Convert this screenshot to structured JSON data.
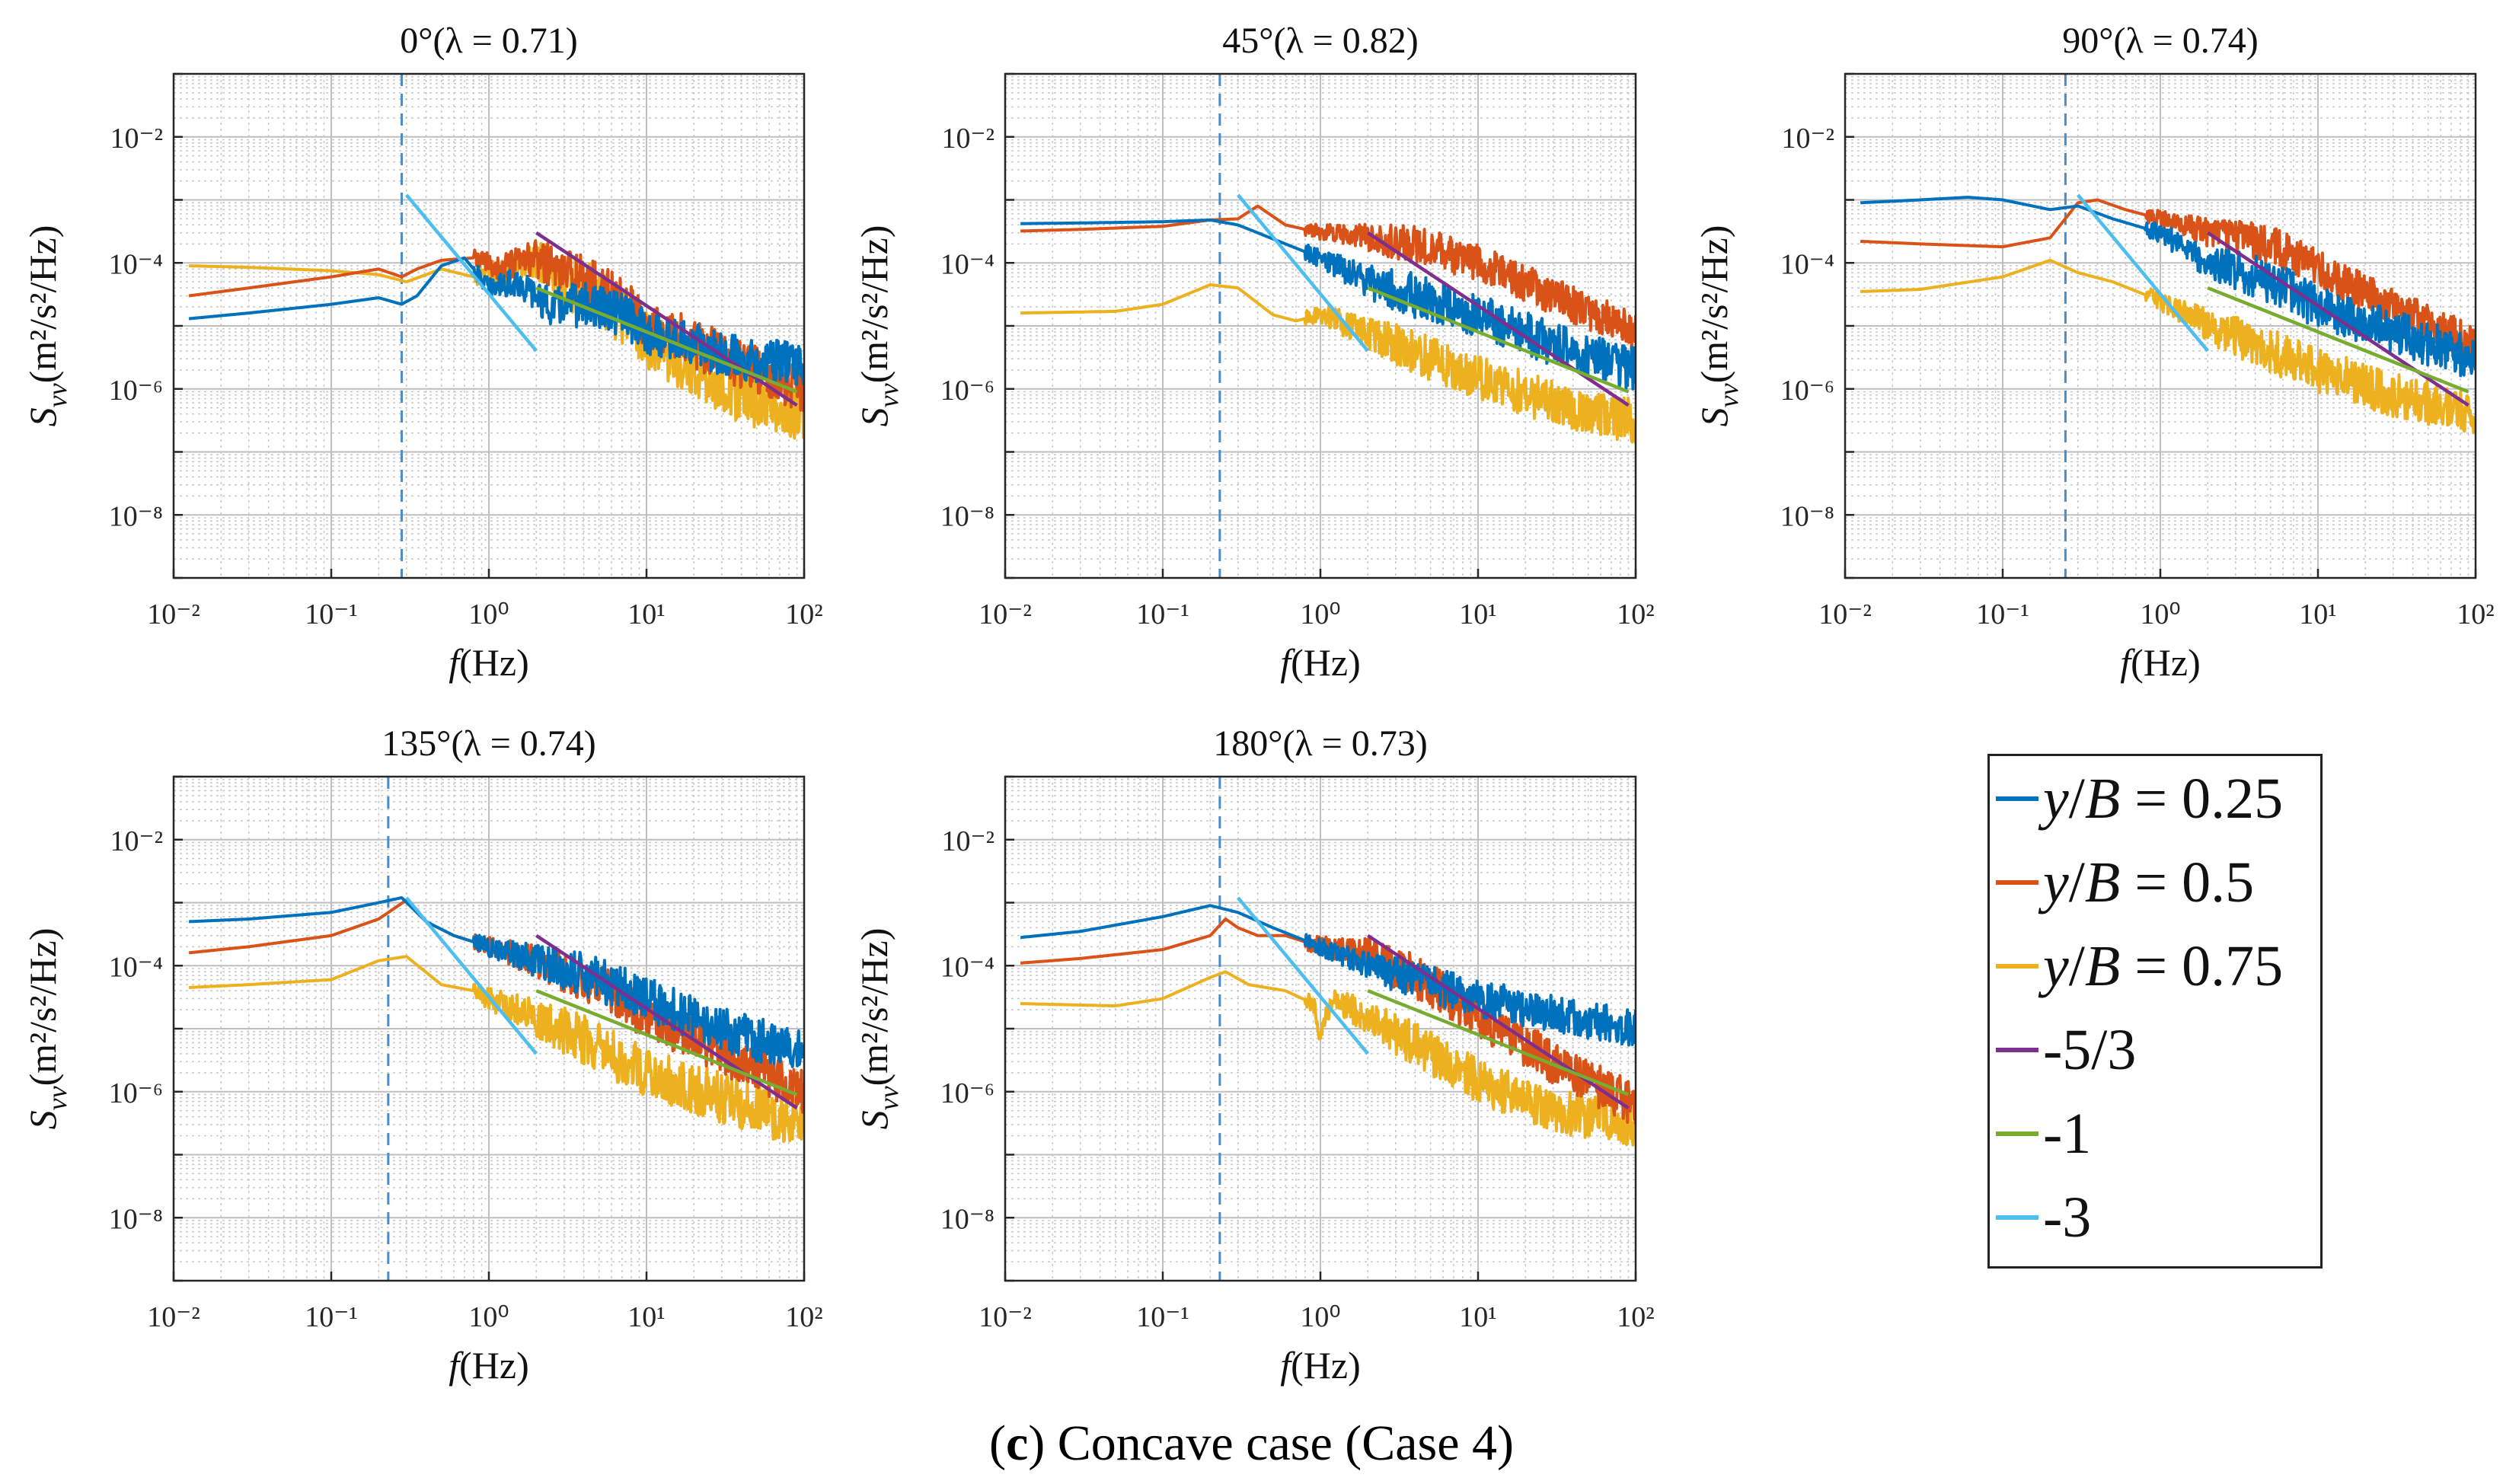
{
  "caption": {
    "letter": "c",
    "text": "Concave case (Case 4)"
  },
  "colors": {
    "series": [
      "#0072BD",
      "#D95319",
      "#EDB120"
    ],
    "slope_m53": "#7E2F8E",
    "slope_m1": "#77AC30",
    "slope_m3": "#4DBEEE",
    "vline": "#4D8BC4",
    "grid": "#c8c8c8"
  },
  "legend": {
    "items": [
      {
        "prefix": "y",
        "mid": "/",
        "var": "B",
        "suffix": " = 0.25",
        "color": "#0072BD"
      },
      {
        "prefix": "y",
        "mid": "/",
        "var": "B",
        "suffix": " = 0.5",
        "color": "#D95319"
      },
      {
        "prefix": "y",
        "mid": "/",
        "var": "B",
        "suffix": " = 0.75",
        "color": "#EDB120"
      },
      {
        "prefix": "",
        "mid": "",
        "var": "",
        "suffix": "-5/3",
        "color": "#7E2F8E"
      },
      {
        "prefix": "",
        "mid": "",
        "var": "",
        "suffix": "-1",
        "color": "#77AC30"
      },
      {
        "prefix": "",
        "mid": "",
        "var": "",
        "suffix": "-3",
        "color": "#4DBEEE"
      }
    ]
  },
  "axis_labels": {
    "x_italic": "f",
    "x_rest": "(Hz)",
    "y_main": "S",
    "y_sub": "vv",
    "y_rest": "(m²/s²/Hz)"
  },
  "chart_data": [
    {
      "type": "line",
      "title_angle": "0°",
      "title_lambda": "(λ = 0.71)",
      "xscale": "log",
      "yscale": "log",
      "xlim": [
        0.01,
        100
      ],
      "ylim": [
        1e-09,
        0.1
      ],
      "xticks": [
        "10⁻²",
        "10⁻¹",
        "10⁰",
        "10¹",
        "10²"
      ],
      "yticks": [
        "10⁻⁸",
        "10⁻⁶",
        "10⁻⁴",
        "10⁻²"
      ],
      "vline": 0.28,
      "series": [
        {
          "name": "y/B = 0.25",
          "x": [
            0.0125,
            0.03,
            0.1,
            0.2,
            0.28,
            0.35,
            0.5,
            0.7,
            1.0,
            1.5,
            2.5,
            4,
            7,
            10,
            20,
            40,
            100
          ],
          "y": [
            1.3e-05,
            1.6e-05,
            2.2e-05,
            2.8e-05,
            2.2e-05,
            3e-05,
            9e-05,
            0.00012,
            4e-05,
            5e-05,
            2e-05,
            2.2e-05,
            1.5e-05,
            8e-06,
            5e-06,
            3e-06,
            2.5e-06
          ],
          "noise": 0.35
        },
        {
          "name": "y/B = 0.5",
          "x": [
            0.0125,
            0.03,
            0.1,
            0.2,
            0.28,
            0.35,
            0.5,
            0.8,
            1.2,
            2,
            3,
            5,
            10,
            20,
            40,
            100
          ],
          "y": [
            3e-05,
            4e-05,
            6e-05,
            8e-05,
            6e-05,
            8e-05,
            0.00011,
            0.00012,
            8e-05,
            0.00012,
            7e-05,
            4e-05,
            1.2e-05,
            5e-06,
            2.5e-06,
            1e-06
          ],
          "noise": 0.4
        },
        {
          "name": "y/B = 0.75",
          "x": [
            0.0125,
            0.03,
            0.1,
            0.2,
            0.3,
            0.5,
            0.8,
            1.2,
            2,
            3,
            5,
            10,
            20,
            40,
            100
          ],
          "y": [
            9e-05,
            8.5e-05,
            7.5e-05,
            6.5e-05,
            5e-05,
            8e-05,
            6e-05,
            7e-05,
            0.00012,
            5e-05,
            3e-05,
            6e-06,
            2e-06,
            8e-07,
            4e-07
          ],
          "noise": 0.45
        }
      ],
      "slopes": [
        {
          "name": "-5/3",
          "x": [
            2,
            90
          ],
          "y": [
            0.0003,
            5.5e-07
          ]
        },
        {
          "name": "-1",
          "x": [
            2,
            90
          ],
          "y": [
            4e-05,
            9e-07
          ]
        },
        {
          "name": "-3",
          "x": [
            0.3,
            2
          ],
          "y": [
            0.0012,
            4e-06
          ]
        }
      ]
    },
    {
      "type": "line",
      "title_angle": "45°",
      "title_lambda": "(λ = 0.82)",
      "xscale": "log",
      "yscale": "log",
      "xlim": [
        0.01,
        100
      ],
      "ylim": [
        1e-09,
        0.1
      ],
      "xticks": [
        "10⁻²",
        "10⁻¹",
        "10⁰",
        "10¹",
        "10²"
      ],
      "yticks": [
        "10⁻⁸",
        "10⁻⁶",
        "10⁻⁴",
        "10⁻²"
      ],
      "vline": 0.23,
      "series": [
        {
          "name": "y/B = 0.25",
          "x": [
            0.0125,
            0.03,
            0.1,
            0.2,
            0.3,
            0.4,
            0.6,
            1.0,
            2,
            4,
            10,
            30,
            100
          ],
          "y": [
            0.00042,
            0.00043,
            0.00045,
            0.00048,
            0.0004,
            0.0003,
            0.0002,
            0.00012,
            5e-05,
            3e-05,
            1.5e-05,
            5e-06,
            2e-06
          ],
          "noise": 0.35
        },
        {
          "name": "y/B = 0.5",
          "x": [
            0.0125,
            0.03,
            0.1,
            0.2,
            0.3,
            0.4,
            0.6,
            1.0,
            2,
            4,
            10,
            30,
            100
          ],
          "y": [
            0.00032,
            0.00034,
            0.00038,
            0.00048,
            0.0005,
            0.0008,
            0.0004,
            0.0003,
            0.00025,
            0.0002,
            0.0001,
            3e-05,
            8e-06
          ],
          "noise": 0.3
        },
        {
          "name": "y/B = 0.75",
          "x": [
            0.0125,
            0.05,
            0.1,
            0.2,
            0.3,
            0.5,
            0.7,
            1.0,
            2,
            5,
            10,
            30,
            100
          ],
          "y": [
            1.6e-05,
            1.7e-05,
            2.2e-05,
            4.5e-05,
            4e-05,
            1.5e-05,
            1.2e-05,
            1.5e-05,
            8e-06,
            3e-06,
            1.5e-06,
            6e-07,
            3e-07
          ],
          "noise": 0.35
        }
      ],
      "slopes": [
        {
          "name": "-5/3",
          "x": [
            2,
            90
          ],
          "y": [
            0.0003,
            5.5e-07
          ]
        },
        {
          "name": "-1",
          "x": [
            2,
            90
          ],
          "y": [
            4e-05,
            9e-07
          ]
        },
        {
          "name": "-3",
          "x": [
            0.3,
            2
          ],
          "y": [
            0.0012,
            4e-06
          ]
        }
      ]
    },
    {
      "type": "line",
      "title_angle": "90°",
      "title_lambda": "(λ = 0.74)",
      "xscale": "log",
      "yscale": "log",
      "xlim": [
        0.01,
        100
      ],
      "ylim": [
        1e-09,
        0.1
      ],
      "xticks": [
        "10⁻²",
        "10⁻¹",
        "10⁰",
        "10¹",
        "10²"
      ],
      "yticks": [
        "10⁻⁸",
        "10⁻⁶",
        "10⁻⁴",
        "10⁻²"
      ],
      "vline": 0.25,
      "series": [
        {
          "name": "y/B = 0.25",
          "x": [
            0.0125,
            0.03,
            0.06,
            0.1,
            0.2,
            0.3,
            0.5,
            1.0,
            2,
            5,
            10,
            30,
            100
          ],
          "y": [
            0.0009,
            0.001,
            0.0011,
            0.001,
            0.0007,
            0.0008,
            0.0005,
            0.0003,
            0.0001,
            5e-05,
            2e-05,
            8e-06,
            3e-06
          ],
          "noise": 0.35
        },
        {
          "name": "y/B = 0.5",
          "x": [
            0.0125,
            0.03,
            0.1,
            0.2,
            0.3,
            0.4,
            0.6,
            1.0,
            2,
            5,
            10,
            30,
            100
          ],
          "y": [
            0.00022,
            0.0002,
            0.00018,
            0.00025,
            0.0009,
            0.001,
            0.0007,
            0.0005,
            0.0003,
            0.0002,
            8e-05,
            2e-05,
            5e-06
          ],
          "noise": 0.3
        },
        {
          "name": "y/B = 0.75",
          "x": [
            0.0125,
            0.03,
            0.1,
            0.2,
            0.3,
            0.5,
            1.0,
            2,
            5,
            10,
            30,
            100
          ],
          "y": [
            3.5e-05,
            3.8e-05,
            6e-05,
            0.00011,
            7e-05,
            5e-05,
            2.5e-05,
            1e-05,
            4e-06,
            2e-06,
            8e-07,
            4e-07
          ],
          "noise": 0.35
        }
      ],
      "slopes": [
        {
          "name": "-5/3",
          "x": [
            2,
            90
          ],
          "y": [
            0.0003,
            5.5e-07
          ]
        },
        {
          "name": "-1",
          "x": [
            2,
            90
          ],
          "y": [
            4e-05,
            9e-07
          ]
        },
        {
          "name": "-3",
          "x": [
            0.3,
            2
          ],
          "y": [
            0.0012,
            4e-06
          ]
        }
      ]
    },
    {
      "type": "line",
      "title_angle": "135°",
      "title_lambda": "(λ = 0.74)",
      "xscale": "log",
      "yscale": "log",
      "xlim": [
        0.01,
        100
      ],
      "ylim": [
        1e-09,
        0.1
      ],
      "xticks": [
        "10⁻²",
        "10⁻¹",
        "10⁰",
        "10¹",
        "10²"
      ],
      "yticks": [
        "10⁻⁸",
        "10⁻⁶",
        "10⁻⁴",
        "10⁻²"
      ],
      "vline": 0.23,
      "series": [
        {
          "name": "y/B = 0.25",
          "x": [
            0.0125,
            0.03,
            0.1,
            0.2,
            0.28,
            0.4,
            0.6,
            1.0,
            2,
            5,
            10,
            30,
            100
          ],
          "y": [
            0.0005,
            0.00055,
            0.0007,
            0.001,
            0.0012,
            0.0005,
            0.0003,
            0.0002,
            0.00012,
            6e-05,
            3e-05,
            1e-05,
            4e-06
          ],
          "noise": 0.35
        },
        {
          "name": "y/B = 0.5",
          "x": [
            0.0125,
            0.03,
            0.1,
            0.2,
            0.3,
            0.4,
            0.6,
            1.0,
            2,
            5,
            10,
            30,
            100
          ],
          "y": [
            0.00016,
            0.0002,
            0.0003,
            0.00055,
            0.0011,
            0.0005,
            0.0003,
            0.0002,
            0.00012,
            5e-05,
            1.5e-05,
            4e-06,
            1e-06
          ],
          "noise": 0.35
        },
        {
          "name": "y/B = 0.75",
          "x": [
            0.0125,
            0.03,
            0.1,
            0.2,
            0.3,
            0.5,
            0.8,
            1.0,
            2,
            5,
            10,
            30,
            100
          ],
          "y": [
            4.5e-05,
            5e-05,
            6e-05,
            0.00012,
            0.00014,
            5e-05,
            4e-05,
            3e-05,
            1.5e-05,
            5e-06,
            2e-06,
            8e-07,
            3e-07
          ],
          "noise": 0.4
        }
      ],
      "slopes": [
        {
          "name": "-5/3",
          "x": [
            2,
            90
          ],
          "y": [
            0.0003,
            5.5e-07
          ]
        },
        {
          "name": "-1",
          "x": [
            2,
            90
          ],
          "y": [
            4e-05,
            9e-07
          ]
        },
        {
          "name": "-3",
          "x": [
            0.3,
            2
          ],
          "y": [
            0.0012,
            4e-06
          ]
        }
      ]
    },
    {
      "type": "line",
      "title_angle": "180°",
      "title_lambda": "(λ = 0.73)",
      "xscale": "log",
      "yscale": "log",
      "xlim": [
        0.01,
        100
      ],
      "ylim": [
        1e-09,
        0.1
      ],
      "xticks": [
        "10⁻²",
        "10⁻¹",
        "10⁰",
        "10¹",
        "10²"
      ],
      "yticks": [
        "10⁻⁸",
        "10⁻⁶",
        "10⁻⁴",
        "10⁻²"
      ],
      "vline": 0.23,
      "series": [
        {
          "name": "y/B = 0.25",
          "x": [
            0.0125,
            0.03,
            0.1,
            0.2,
            0.3,
            0.5,
            1.0,
            2,
            5,
            10,
            30,
            100
          ],
          "y": [
            0.00028,
            0.00035,
            0.0006,
            0.0009,
            0.0007,
            0.0004,
            0.0002,
            0.0001,
            5e-05,
            3e-05,
            1.8e-05,
            1e-05
          ],
          "noise": 0.3
        },
        {
          "name": "y/B = 0.5",
          "x": [
            0.0125,
            0.03,
            0.1,
            0.2,
            0.25,
            0.3,
            0.4,
            0.6,
            1.0,
            2,
            5,
            10,
            30,
            100
          ],
          "y": [
            0.00011,
            0.00013,
            0.00018,
            0.0003,
            0.00055,
            0.0004,
            0.0003,
            0.0003,
            0.0002,
            0.00015,
            5e-05,
            1.5e-05,
            3e-06,
            6e-07
          ],
          "noise": 0.35
        },
        {
          "name": "y/B = 0.75",
          "x": [
            0.0125,
            0.05,
            0.1,
            0.2,
            0.25,
            0.35,
            0.6,
            0.9,
            1.0,
            1.2,
            2,
            5,
            10,
            30,
            100
          ],
          "y": [
            2.5e-05,
            2.3e-05,
            3e-05,
            6.5e-05,
            8e-05,
            5e-05,
            4e-05,
            2.5e-05,
            8e-06,
            3e-05,
            1.5e-05,
            4e-06,
            1.5e-06,
            5e-07,
            3e-07
          ],
          "noise": 0.35
        }
      ],
      "slopes": [
        {
          "name": "-5/3",
          "x": [
            2,
            90
          ],
          "y": [
            0.0003,
            5.5e-07
          ]
        },
        {
          "name": "-1",
          "x": [
            2,
            90
          ],
          "y": [
            4e-05,
            9e-07
          ]
        },
        {
          "name": "-3",
          "x": [
            0.3,
            2
          ],
          "y": [
            0.0012,
            4e-06
          ]
        }
      ]
    }
  ]
}
